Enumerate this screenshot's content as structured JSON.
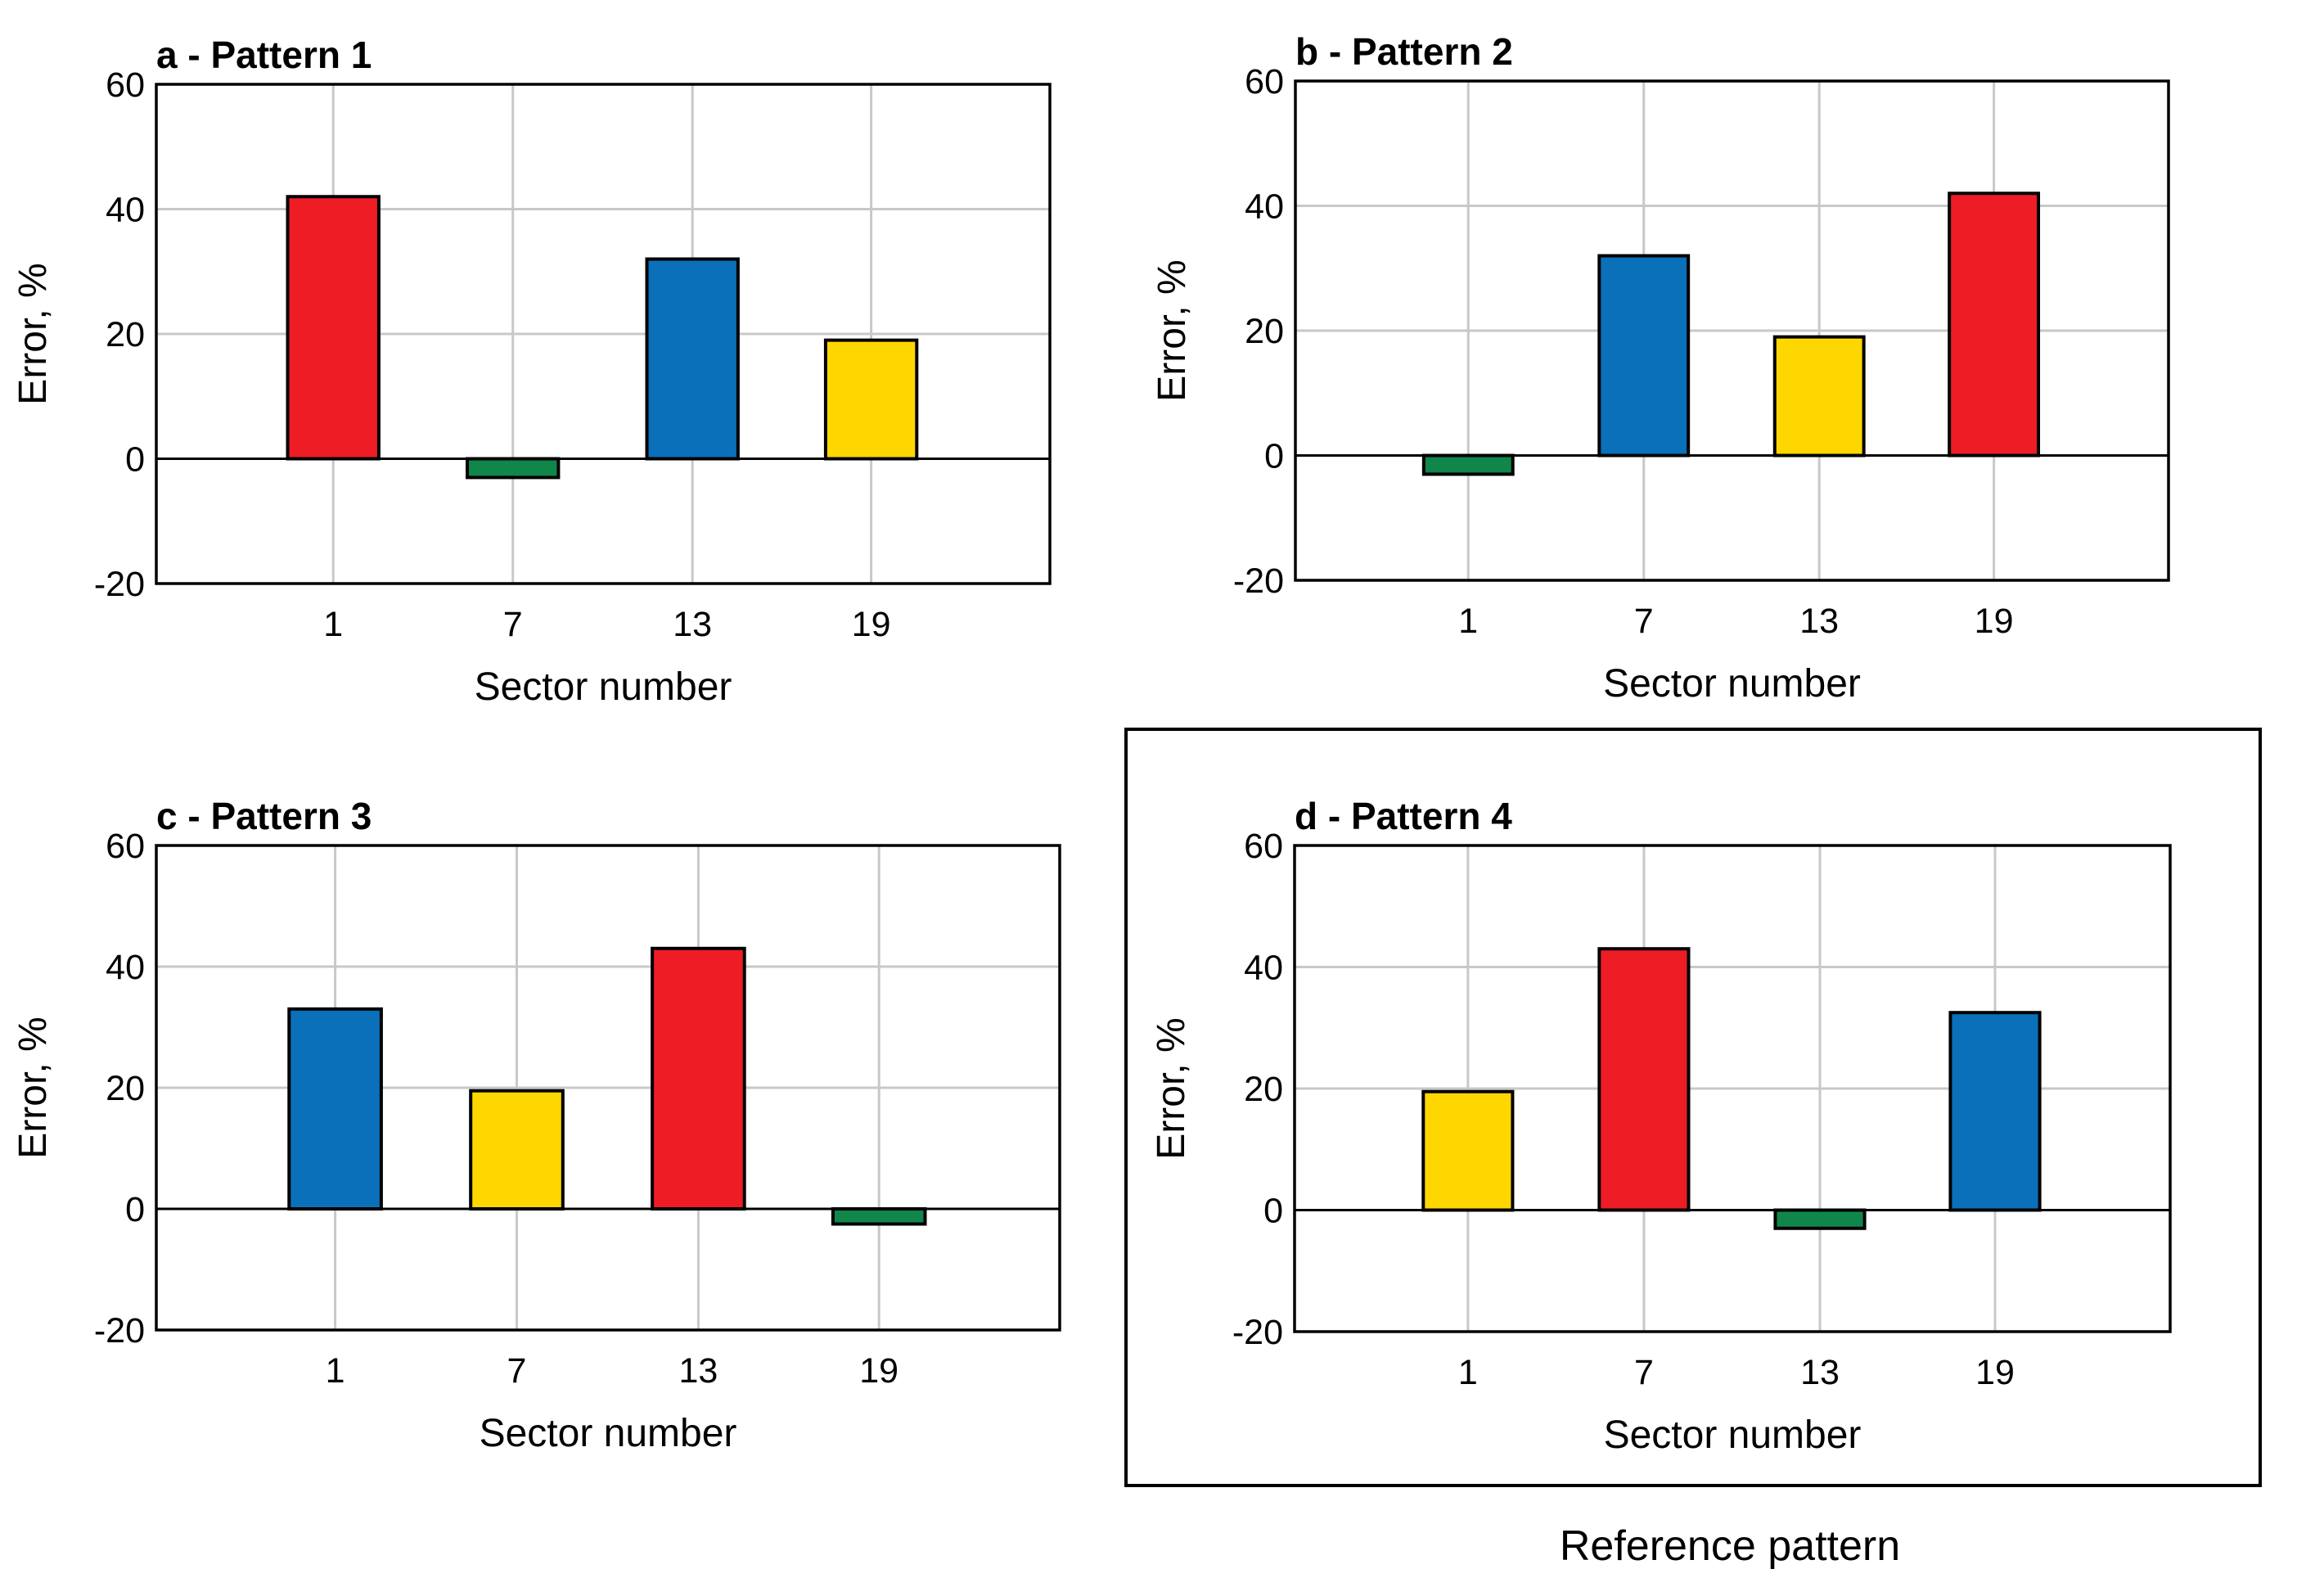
{
  "chart_data": [
    {
      "id": "a",
      "type": "bar",
      "title": "a - Pattern 1",
      "xlabel": "Sector number",
      "ylabel": "Error, %",
      "categories": [
        "1",
        "7",
        "13",
        "19"
      ],
      "values": [
        42,
        -3,
        32,
        19
      ],
      "colors": [
        "#ee1c25",
        "#10864a",
        "#0a70b9",
        "#ffd700"
      ],
      "ylim": [
        -20,
        60
      ],
      "yticks": [
        -20,
        0,
        20,
        40,
        60
      ],
      "grid": true
    },
    {
      "id": "b",
      "type": "bar",
      "title": "b - Pattern  2",
      "xlabel": "Sector number",
      "ylabel": "Error, %",
      "categories": [
        "1",
        "7",
        "13",
        "19"
      ],
      "values": [
        -3,
        32,
        19,
        42
      ],
      "colors": [
        "#10864a",
        "#0a70b9",
        "#ffd700",
        "#ee1c25"
      ],
      "ylim": [
        -20,
        60
      ],
      "yticks": [
        -20,
        0,
        20,
        40,
        60
      ],
      "grid": true
    },
    {
      "id": "c",
      "type": "bar",
      "title": "c - Pattern  3",
      "xlabel": "Sector number",
      "ylabel": "Error, %",
      "categories": [
        "1",
        "7",
        "13",
        "19"
      ],
      "values": [
        33,
        19.5,
        43,
        -2.5
      ],
      "colors": [
        "#0a70b9",
        "#ffd700",
        "#ee1c25",
        "#10864a"
      ],
      "ylim": [
        -20,
        60
      ],
      "yticks": [
        -20,
        0,
        20,
        40,
        60
      ],
      "grid": true
    },
    {
      "id": "d",
      "type": "bar",
      "title": "d - Pattern  4",
      "xlabel": "Sector number",
      "ylabel": "Error, %",
      "categories": [
        "1",
        "7",
        "13",
        "19"
      ],
      "values": [
        19.5,
        43,
        -3,
        32.5
      ],
      "colors": [
        "#ffd700",
        "#ee1c25",
        "#10864a",
        "#0a70b9"
      ],
      "ylim": [
        -20,
        60
      ],
      "yticks": [
        -20,
        0,
        20,
        40,
        60
      ],
      "grid": true
    }
  ],
  "reference_caption": "Reference pattern"
}
